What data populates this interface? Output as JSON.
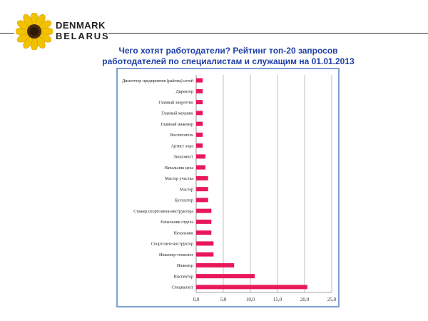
{
  "brand": {
    "line1": "DENMARK",
    "line2": "BELARUS"
  },
  "title": {
    "line1": "Чего хотят работодатели? Рейтинг топ-20 запросов",
    "line2": "работодателей по специалистам и служащим на 01.01.2013"
  },
  "colors": {
    "bar": "#e8185a",
    "title": "#1f3fa6",
    "frame": "#7fa0cf",
    "grid": "#b0b0b0"
  },
  "chart_data": {
    "type": "bar",
    "orientation": "horizontal",
    "categories": [
      "Диспетчер предприятия (района) сетей",
      "Директор",
      "Главный энергетик",
      "Главный механик",
      "Главный инженер",
      "Воспитатель",
      "Артист хора",
      "Экономист",
      "Начальник цеха",
      "Мастер участка",
      "Мастер",
      "Бухгалтер",
      "Стажер спортсмена-инструктора",
      "Начальник отдела",
      "Начальник",
      "Спортсмен-инструктор",
      "Инженер-технолог",
      "Инженер",
      "Инспектор",
      "Специалист"
    ],
    "values": [
      1.2,
      1.2,
      1.2,
      1.2,
      1.2,
      1.2,
      1.2,
      1.7,
      1.7,
      2.2,
      2.2,
      2.2,
      2.8,
      2.8,
      2.8,
      3.2,
      3.2,
      7.0,
      10.8,
      20.5
    ],
    "xlim": [
      0,
      25
    ],
    "ticks": [
      "0,0",
      "5,0",
      "10,0",
      "15,0",
      "20,0",
      "25,0"
    ],
    "grid": true
  }
}
